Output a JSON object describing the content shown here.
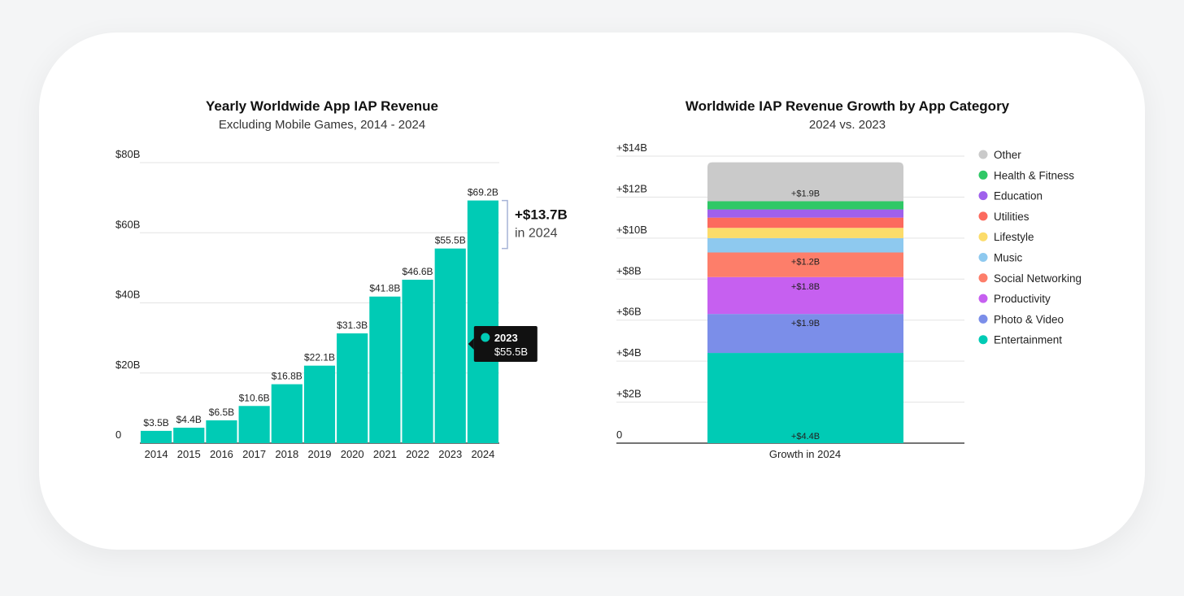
{
  "chart_data": [
    {
      "type": "bar",
      "title": "Yearly Worldwide App IAP Revenue",
      "subtitle": "Excluding Mobile Games, 2014 - 2024",
      "categories": [
        "2014",
        "2015",
        "2016",
        "2017",
        "2018",
        "2019",
        "2020",
        "2021",
        "2022",
        "2023",
        "2024"
      ],
      "values": [
        3.5,
        4.4,
        6.5,
        10.6,
        16.8,
        22.1,
        31.3,
        41.8,
        46.6,
        55.5,
        69.2
      ],
      "value_labels": [
        "$3.5B",
        "$4.4B",
        "$6.5B",
        "$10.6B",
        "$16.8B",
        "$22.1B",
        "$31.3B",
        "$41.8B",
        "$46.6B",
        "$55.5B",
        "$69.2B"
      ],
      "ylim": [
        0,
        80
      ],
      "y_ticks": [
        {
          "value": 80,
          "label": "$80B"
        },
        {
          "value": 60,
          "label": "$60B"
        },
        {
          "value": 40,
          "label": "$40B"
        },
        {
          "value": 20,
          "label": "$20B"
        },
        {
          "value": 0,
          "label": "0"
        }
      ],
      "grid": true,
      "bar_color": "#00cbb5",
      "annotation": {
        "value": "+$13.7B",
        "text": "in 2024",
        "from": 55.5,
        "to": 69.2
      },
      "tooltip": {
        "category": "2023",
        "value": "$55.5B"
      }
    },
    {
      "type": "stacked_bar",
      "title": "Worldwide IAP Revenue Growth by App Category",
      "subtitle": "2024 vs. 2023",
      "category": "Growth in 2024",
      "ylim": [
        0,
        14
      ],
      "y_ticks": [
        {
          "value": 14,
          "label": "+$14B"
        },
        {
          "value": 12,
          "label": "+$12B"
        },
        {
          "value": 10,
          "label": "+$10B"
        },
        {
          "value": 8,
          "label": "+$8B"
        },
        {
          "value": 6,
          "label": "+$6B"
        },
        {
          "value": 4,
          "label": "+$4B"
        },
        {
          "value": 2,
          "label": "+$2B"
        },
        {
          "value": 0,
          "label": "0"
        }
      ],
      "grid": true,
      "legend_position": "right",
      "series": [
        {
          "name": "Entertainment",
          "value": 4.4,
          "label": "+$4.4B",
          "color": "#00cbb5"
        },
        {
          "name": "Photo & Video",
          "value": 1.9,
          "label": "+$1.9B",
          "color": "#7b8ee9"
        },
        {
          "name": "Productivity",
          "value": 1.8,
          "label": "+$1.8B",
          "color": "#c660f0"
        },
        {
          "name": "Social Networking",
          "value": 1.2,
          "label": "+$1.2B",
          "color": "#fd7e6a"
        },
        {
          "name": "Music",
          "value": 0.7,
          "label": "",
          "color": "#8ec9ef"
        },
        {
          "name": "Lifestyle",
          "value": 0.5,
          "label": "",
          "color": "#fcdc6a"
        },
        {
          "name": "Utilities",
          "value": 0.5,
          "label": "",
          "color": "#fc6a5e"
        },
        {
          "name": "Education",
          "value": 0.4,
          "label": "",
          "color": "#9f60ec"
        },
        {
          "name": "Health & Fitness",
          "value": 0.4,
          "label": "",
          "color": "#2fc866"
        },
        {
          "name": "Other",
          "value": 1.9,
          "label": "+$1.9B",
          "color": "#cacaca"
        }
      ]
    }
  ]
}
